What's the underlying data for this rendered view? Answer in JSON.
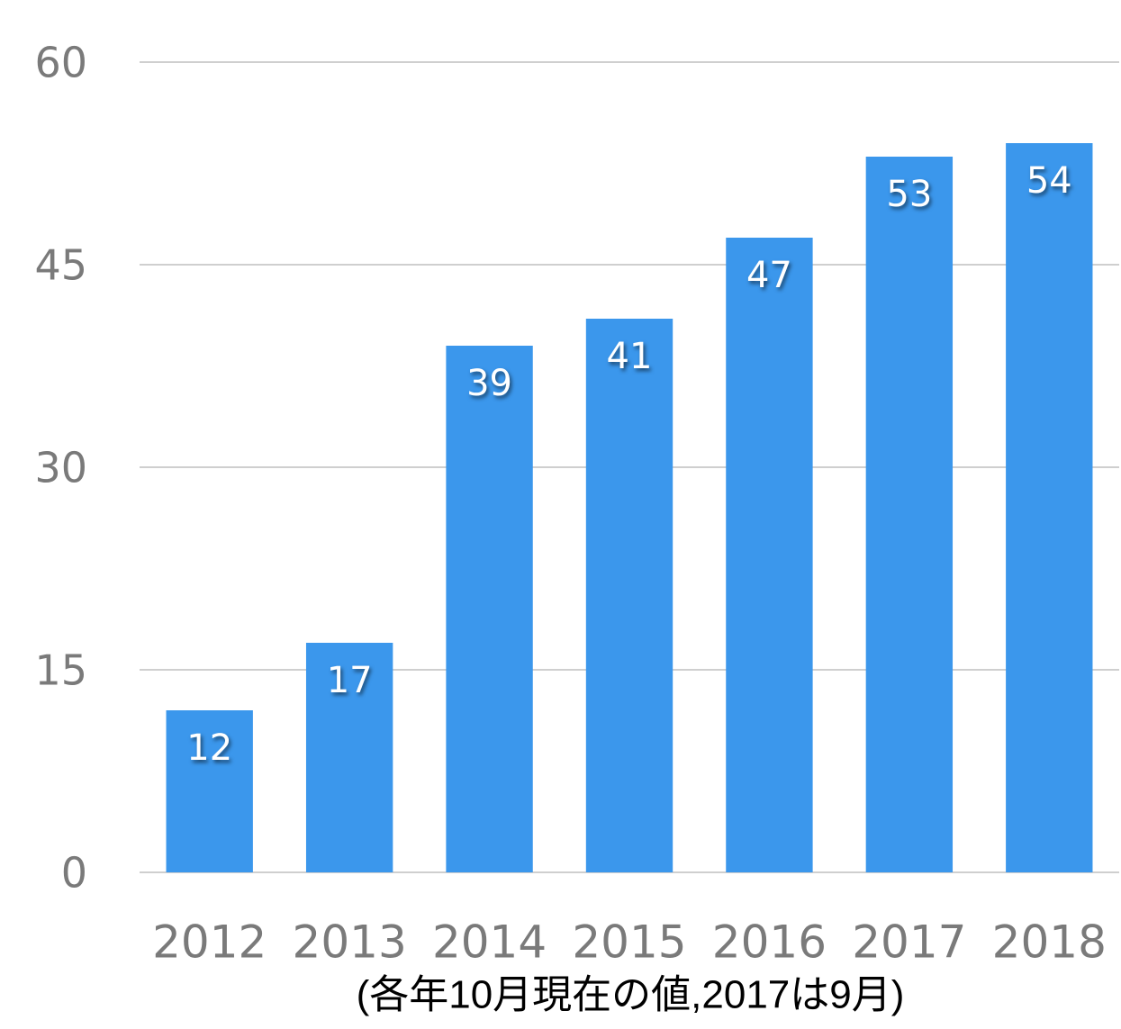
{
  "chart_data": {
    "type": "bar",
    "categories": [
      "2012",
      "2013",
      "2014",
      "2015",
      "2016",
      "2017",
      "2018"
    ],
    "values": [
      12,
      17,
      39,
      41,
      47,
      53,
      54
    ],
    "color": "#3b97ec",
    "ylim": [
      0,
      60
    ],
    "yticks": [
      0,
      15,
      30,
      45,
      60
    ],
    "grid": true,
    "x_label": "(各年10月現在の値,2017は9月)"
  }
}
